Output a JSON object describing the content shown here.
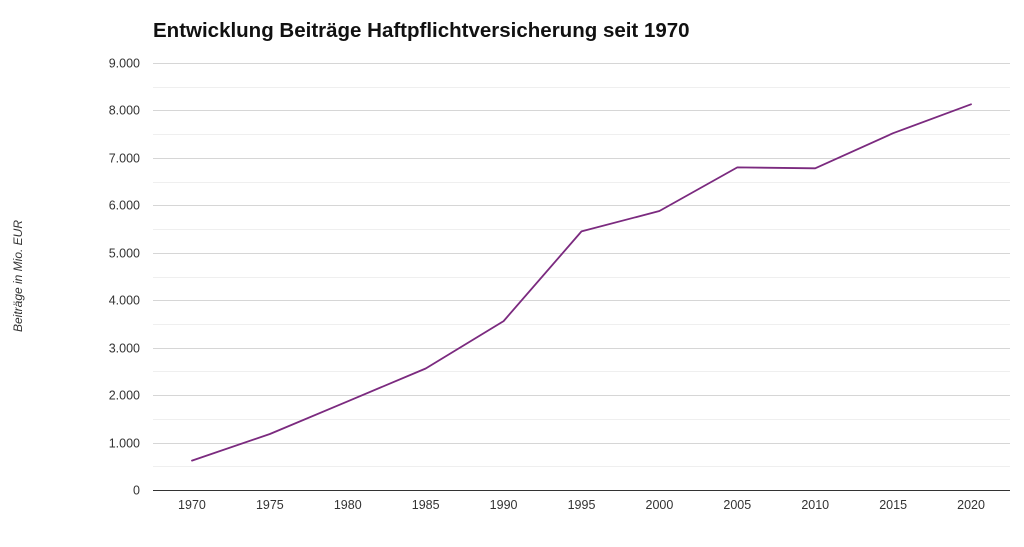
{
  "chart_data": {
    "type": "line",
    "title": "Entwicklung Beiträge Haftpflichtversicherung seit 1970",
    "xlabel": "",
    "ylabel": "Beiträge in Mio. EUR",
    "categories": [
      "1970",
      "1975",
      "1980",
      "1985",
      "1990",
      "1995",
      "2000",
      "2005",
      "2010",
      "2015",
      "2020"
    ],
    "series": [
      {
        "values": [
          620,
          1180,
          1870,
          2560,
          3560,
          5450,
          5880,
          6800,
          6780,
          7520,
          8130
        ]
      }
    ],
    "ylim": [
      0,
      9000
    ],
    "y_ticks": [
      0,
      1000,
      2000,
      3000,
      4000,
      5000,
      6000,
      7000,
      8000,
      9000
    ],
    "y_tick_labels": [
      "0",
      "1.000",
      "2.000",
      "3.000",
      "4.000",
      "5.000",
      "6.000",
      "7.000",
      "8.000",
      "9.000"
    ],
    "grid": true,
    "legend": "none",
    "colors": {
      "line": "#7b2a7f",
      "grid_major": "#d6d6d6",
      "grid_minor": "#efefef",
      "axis": "#333333"
    }
  }
}
